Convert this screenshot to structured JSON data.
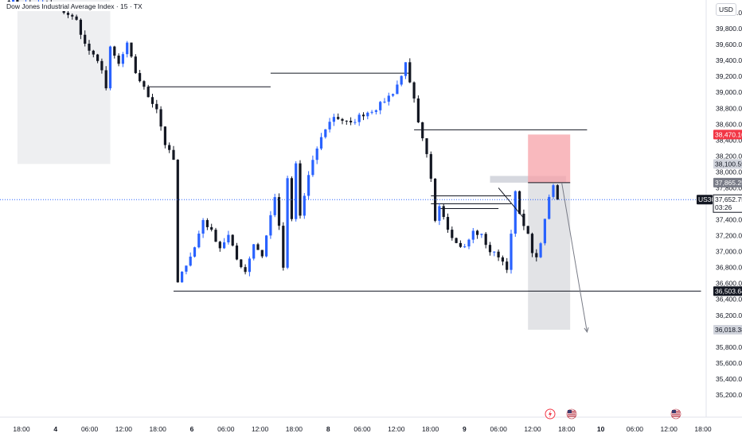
{
  "chart_data": {
    "type": "candlestick",
    "title": "Dow Jones Industrial Average Index · 15 · TX",
    "symbol": "US30",
    "currency": "USD",
    "price_axis": {
      "range": [
        35100,
        40200
      ],
      "ticks": [
        35200,
        35400,
        35600,
        35800,
        36000,
        36200,
        36400,
        36600,
        36800,
        37000,
        37200,
        37400,
        37600,
        37800,
        38000,
        38200,
        38400,
        38600,
        38800,
        39000,
        39200,
        39400,
        39600,
        39800,
        40000
      ],
      "tick_labels": [
        "35,200.00",
        "35,400.00",
        "35,600.00",
        "35,800.00",
        "36,000.00",
        "36,200.00",
        "36,400.00",
        "36,600.00",
        "36,800.00",
        "37,000.00",
        "37,200.00",
        "37,400.00",
        "37,600.00",
        "37,800.00",
        "38,000.00",
        "38,200.00",
        "38,400.00",
        "38,600.00",
        "38,800.00",
        "39,000.00",
        "39,200.00",
        "39,400.00",
        "39,600.00",
        "39,800.00",
        "40,000.00"
      ]
    },
    "time_axis": {
      "ticks": [
        {
          "label": "18:00",
          "bold": false
        },
        {
          "label": "4",
          "bold": true
        },
        {
          "label": "06:00",
          "bold": false
        },
        {
          "label": "12:00",
          "bold": false
        },
        {
          "label": "18:00",
          "bold": false
        },
        {
          "label": "6",
          "bold": true
        },
        {
          "label": "06:00",
          "bold": false
        },
        {
          "label": "12:00",
          "bold": false
        },
        {
          "label": "18:00",
          "bold": false
        },
        {
          "label": "8",
          "bold": true
        },
        {
          "label": "06:00",
          "bold": false
        },
        {
          "label": "12:00",
          "bold": false
        },
        {
          "label": "18:00",
          "bold": false
        },
        {
          "label": "9",
          "bold": true
        },
        {
          "label": "06:00",
          "bold": false
        },
        {
          "label": "12:00",
          "bold": false
        },
        {
          "label": "18:00",
          "bold": false
        },
        {
          "label": "10",
          "bold": true
        },
        {
          "label": "06:00",
          "bold": false
        },
        {
          "label": "12:00",
          "bold": false
        },
        {
          "label": "18:00",
          "bold": false
        }
      ]
    },
    "price_tags": [
      {
        "label": "38,470.10",
        "value": 38470.1,
        "bg": "#f23645",
        "fg": "#ffffff"
      },
      {
        "label": "38,100.59",
        "value": 38100.59,
        "bg": "#d1d4dc",
        "fg": "#131722"
      },
      {
        "label": "37,865.25",
        "value": 37865.25,
        "bg": "#787b86",
        "fg": "#ffffff"
      },
      {
        "label": "36,503.64",
        "value": 36503.64,
        "bg": "#131722",
        "fg": "#ffffff"
      },
      {
        "label": "36,018.38",
        "value": 36018.38,
        "bg": "#d1d4dc",
        "fg": "#131722"
      }
    ],
    "last_price": {
      "label": "37,652.75",
      "value": 37652.75,
      "countdown": "03:26",
      "symbol_tag": "US30"
    },
    "path": [
      [
        0,
        40150
      ],
      [
        6,
        40100
      ],
      [
        10,
        40120
      ],
      [
        13,
        40050
      ],
      [
        15,
        39980
      ],
      [
        17,
        39900
      ],
      [
        19,
        39600
      ],
      [
        21,
        39450
      ],
      [
        23,
        39300
      ],
      [
        24,
        39050
      ],
      [
        25,
        39550
      ],
      [
        27,
        39350
      ],
      [
        29,
        39600
      ],
      [
        31,
        39250
      ],
      [
        34,
        38950
      ],
      [
        36,
        38800
      ],
      [
        38,
        38350
      ],
      [
        40,
        38150
      ],
      [
        41,
        36600
      ],
      [
        43,
        36850
      ],
      [
        45,
        37050
      ],
      [
        47,
        37400
      ],
      [
        49,
        37250
      ],
      [
        51,
        37050
      ],
      [
        53,
        37200
      ],
      [
        55,
        36900
      ],
      [
        57,
        36750
      ],
      [
        59,
        37100
      ],
      [
        61,
        36950
      ],
      [
        63,
        37450
      ],
      [
        64,
        37700
      ],
      [
        65,
        37300
      ],
      [
        66,
        36800
      ],
      [
        67,
        37900
      ],
      [
        68,
        37400
      ],
      [
        69,
        38100
      ],
      [
        70,
        37450
      ],
      [
        71,
        37700
      ],
      [
        72,
        37950
      ],
      [
        74,
        38300
      ],
      [
        76,
        38550
      ],
      [
        78,
        38700
      ],
      [
        80,
        38650
      ],
      [
        82,
        38600
      ],
      [
        84,
        38700
      ],
      [
        86,
        38750
      ],
      [
        88,
        38800
      ],
      [
        90,
        38900
      ],
      [
        92,
        39000
      ],
      [
        94,
        39200
      ],
      [
        95,
        39400
      ],
      [
        96,
        39100
      ],
      [
        97,
        38900
      ],
      [
        98,
        38600
      ],
      [
        99,
        38400
      ],
      [
        100,
        38200
      ],
      [
        101,
        37900
      ],
      [
        102,
        37400
      ],
      [
        103,
        37600
      ],
      [
        105,
        37300
      ],
      [
        107,
        37100
      ],
      [
        109,
        37050
      ],
      [
        111,
        37250
      ],
      [
        113,
        37200
      ],
      [
        115,
        37000
      ],
      [
        117,
        36950
      ],
      [
        119,
        36800
      ],
      [
        120,
        37200
      ],
      [
        121,
        37750
      ],
      [
        122,
        37450
      ],
      [
        123,
        37350
      ],
      [
        124,
        37200
      ],
      [
        125,
        37000
      ],
      [
        126,
        36900
      ],
      [
        127,
        37100
      ],
      [
        128,
        37400
      ],
      [
        129,
        37700
      ],
      [
        130,
        37850
      ],
      [
        131,
        37652.75
      ]
    ],
    "annotations": {
      "horizontal_lines": [
        {
          "price": 39070,
          "from": 34,
          "to": 63
        },
        {
          "price": 39240,
          "from": 63,
          "to": 96
        },
        {
          "price": 38530,
          "from": 97,
          "to": 138
        },
        {
          "price": 37700,
          "from": 101,
          "to": 120
        },
        {
          "price": 37540,
          "from": 103,
          "to": 117
        },
        {
          "price": 37600,
          "from": 101,
          "to": 120
        },
        {
          "price": 36503.64,
          "from": 40,
          "to": 165
        }
      ],
      "shaded_zones": [
        {
          "from": 3,
          "to": 25,
          "top": 40200,
          "bottom": 38100.59
        },
        {
          "from": 115,
          "to": 133,
          "top": 37950,
          "bottom": 37865.25
        }
      ],
      "position": {
        "from": 124,
        "to": 134,
        "entry": 37865.25,
        "stop": 38470.1,
        "target": 36018.38
      },
      "arrow": {
        "from_index": 132,
        "from_price": 37865.25,
        "to_index": 138,
        "to_price": 35990
      },
      "trend_segment": {
        "from_index": 117,
        "from_price": 37800,
        "to_index": 123,
        "to_price": 37420
      }
    },
    "footer_icons": [
      "flash-icon",
      "us-flag-icon",
      "us-flag-icon"
    ],
    "colors": {
      "up": "#2962ff",
      "down": "#131722",
      "stop_zone": "#f7a1a8",
      "target_zone": "#d8d9dd",
      "last_price_line": "#2962ff"
    }
  }
}
